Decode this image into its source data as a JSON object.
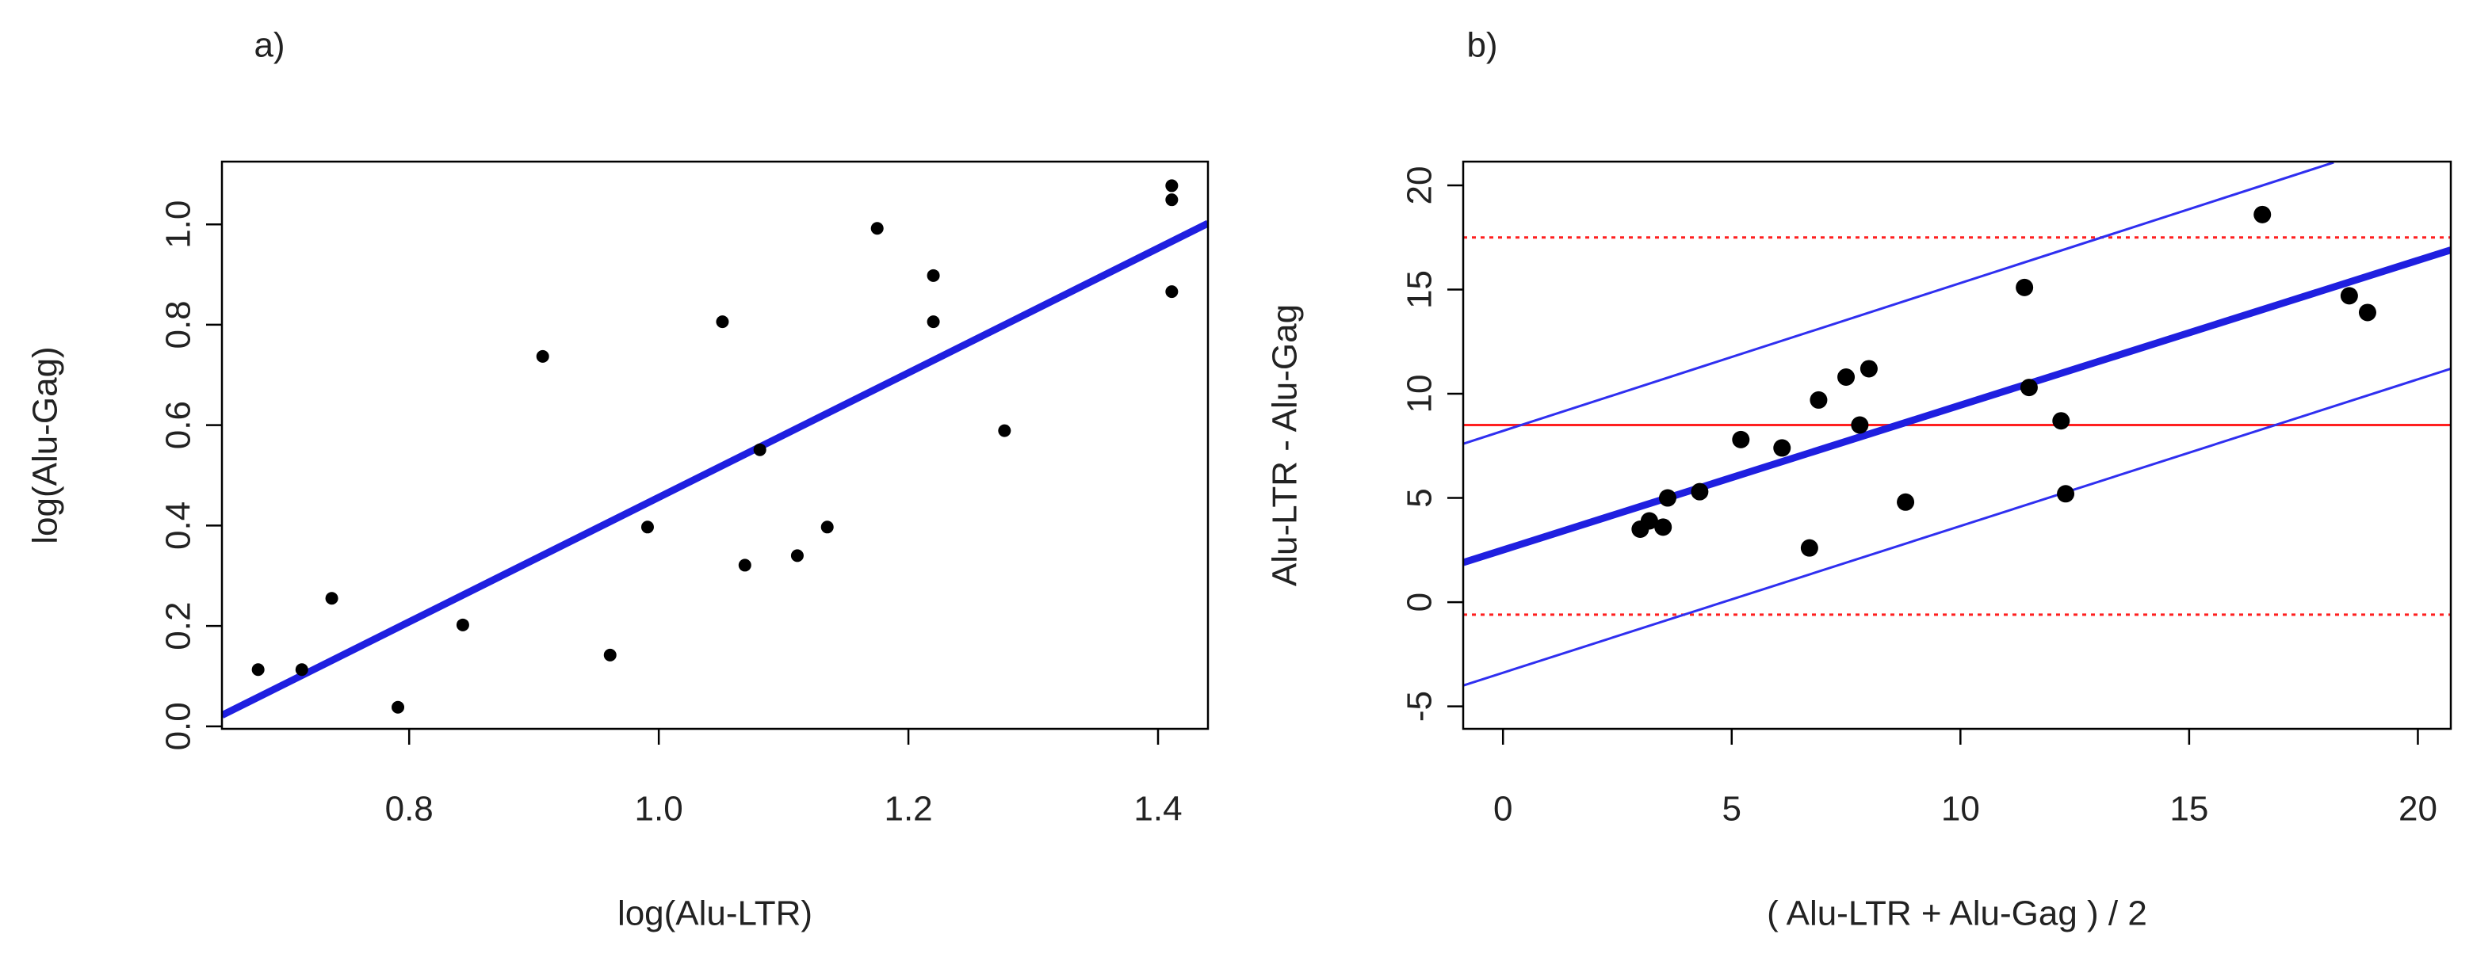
{
  "chart_data": [
    {
      "type": "scatter",
      "title": "a)",
      "xlabel": "log(Alu-LTR)",
      "ylabel": "log(Alu-Gag)",
      "xlim": [
        0.65,
        1.44
      ],
      "ylim": [
        -0.005,
        1.125
      ],
      "xticks": [
        0.8,
        {
          "value": 1.0,
          "label": "1.0"
        },
        1.2,
        1.4
      ],
      "yticks": [
        {
          "value": 0,
          "label": "0.0"
        },
        0.2,
        0.4,
        0.6,
        0.8,
        {
          "value": 1.0,
          "label": "1.0"
        }
      ],
      "points": {
        "color": "#000000",
        "x": [
          0.679,
          0.714,
          0.738,
          0.791,
          0.843,
          0.907,
          0.961,
          0.991,
          1.051,
          1.069,
          1.081,
          1.111,
          1.135,
          1.175,
          1.22,
          1.22,
          1.277,
          1.411,
          1.411,
          1.411
        ],
        "values": [
          0.113,
          0.113,
          0.255,
          0.038,
          0.202,
          0.737,
          0.142,
          0.397,
          0.806,
          0.321,
          0.551,
          0.34,
          0.397,
          0.992,
          0.898,
          0.806,
          0.589,
          1.077,
          1.049,
          0.866
        ]
      },
      "lines": [
        {
          "color": "#1f1fe0",
          "style": "thick",
          "x": [
            0.65,
            1.44
          ],
          "values": [
            0.022,
            1.002
          ]
        }
      ],
      "hlines": []
    },
    {
      "type": "scatter",
      "title": "b)",
      "xlabel": "( Alu-LTR + Alu-Gag ) / 2",
      "ylabel": "Alu-LTR - Alu-Gag",
      "xlim": [
        -0.87,
        20.72
      ],
      "ylim": [
        -6.08,
        21.14
      ],
      "xticks": [
        0,
        5,
        10,
        15,
        20
      ],
      "yticks": [
        -5,
        0,
        5,
        10,
        15,
        20
      ],
      "points": {
        "color": "#000000",
        "x": [
          3.0,
          3.2,
          3.5,
          3.6,
          4.3,
          5.2,
          6.1,
          6.7,
          6.9,
          7.5,
          7.8,
          8.0,
          8.8,
          11.4,
          11.5,
          12.2,
          12.3,
          16.6,
          18.5,
          18.9
        ],
        "values": [
          3.5,
          3.9,
          3.6,
          5.0,
          5.3,
          7.8,
          7.4,
          2.6,
          9.7,
          10.8,
          8.5,
          11.2,
          4.8,
          15.1,
          10.3,
          8.7,
          5.2,
          18.6,
          14.7,
          13.9
        ]
      },
      "lines": [
        {
          "color": "#1f1fe0",
          "style": "thick",
          "x": [
            -0.87,
            20.72
          ],
          "values": [
            1.9,
            16.9
          ]
        },
        {
          "color": "#2f2ff0",
          "style": "thin",
          "x": [
            -0.87,
            18.16
          ],
          "values": [
            7.6,
            21.1
          ]
        },
        {
          "color": "#2f2ff0",
          "style": "thin",
          "x": [
            -0.87,
            20.72
          ],
          "values": [
            -4.0,
            11.2
          ]
        }
      ],
      "hlines": [
        {
          "color": "#ff2020",
          "style": "solid",
          "value": 8.5
        },
        {
          "color": "#ff2020",
          "style": "dotted",
          "value": 17.5
        },
        {
          "color": "#ff2020",
          "style": "dotted",
          "value": -0.6
        }
      ]
    }
  ]
}
